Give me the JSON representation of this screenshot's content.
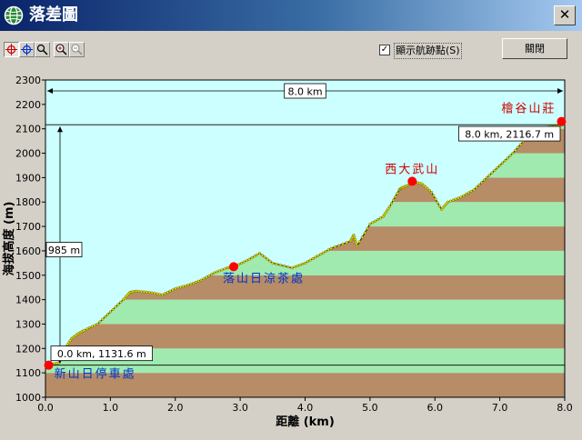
{
  "window": {
    "title": "落差圖",
    "close_glyph": "✕"
  },
  "toolbar": {
    "tools": [
      "crosshair-red-icon",
      "crosshair-blue-icon",
      "magnifier-icon",
      "zoom-in-icon",
      "zoom-out-icon"
    ],
    "checkbox_label": "顯示航跡點(S)",
    "checkbox_checked": true,
    "check_glyph": "✓",
    "close_button_label": "關閉"
  },
  "colors": {
    "sky": "#ccffff",
    "band_green": "#a0eab0",
    "band_brown": "#b68d66",
    "marker": "#ff0000",
    "label_blue": "#0033cc",
    "label_red": "#cc0000"
  },
  "chart_data": {
    "type": "area",
    "xlabel": "距離 (km)",
    "ylabel": "海拔高度 (m)",
    "xlim": [
      0,
      8.0
    ],
    "ylim": [
      1000,
      2300
    ],
    "xticks": [
      "0.0",
      "1.0",
      "2.0",
      "3.0",
      "4.0",
      "5.0",
      "6.0",
      "7.0",
      "8.0"
    ],
    "yticks": [
      "1000",
      "1100",
      "1200",
      "1300",
      "1400",
      "1500",
      "1600",
      "1700",
      "1800",
      "1900",
      "2000",
      "2100",
      "2200",
      "2300"
    ],
    "profile": {
      "x": [
        0.0,
        0.1,
        0.2,
        0.3,
        0.4,
        0.5,
        0.6,
        0.8,
        1.0,
        1.2,
        1.3,
        1.4,
        1.6,
        1.8,
        2.0,
        2.2,
        2.4,
        2.6,
        2.8,
        2.9,
        3.1,
        3.3,
        3.5,
        3.8,
        4.0,
        4.2,
        4.4,
        4.7,
        4.75,
        4.8,
        5.0,
        5.2,
        5.3,
        5.45,
        5.5,
        5.6,
        5.65,
        5.8,
        5.95,
        6.1,
        6.2,
        6.4,
        6.6,
        6.8,
        7.0,
        7.2,
        7.4,
        7.6,
        7.8,
        8.0
      ],
      "y": [
        1131.6,
        1135,
        1140,
        1200,
        1240,
        1260,
        1275,
        1300,
        1350,
        1400,
        1430,
        1435,
        1430,
        1420,
        1445,
        1460,
        1480,
        1510,
        1530,
        1535,
        1560,
        1590,
        1550,
        1530,
        1550,
        1580,
        1610,
        1640,
        1665,
        1620,
        1710,
        1740,
        1780,
        1850,
        1860,
        1870,
        1885,
        1875,
        1840,
        1770,
        1800,
        1820,
        1850,
        1900,
        1950,
        2000,
        2060,
        2100,
        2110,
        2116.7
      ]
    },
    "total_distance_label": "8.0 km",
    "elevation_gain_label": "985 m",
    "start_readout": "0.0 km, 1131.6 m",
    "end_readout": "8.0 km, 2116.7 m",
    "waypoints": [
      {
        "name": "新山日停車處",
        "x": 0.05,
        "y": 1131.6,
        "color": "blue"
      },
      {
        "name": "落山日涼茶處",
        "x": 2.9,
        "y": 1535,
        "color": "blue"
      },
      {
        "name": "西大武山",
        "x": 5.65,
        "y": 1885,
        "color": "red"
      },
      {
        "name": "檜谷山莊",
        "x": 7.95,
        "y": 2130,
        "color": "red"
      }
    ]
  }
}
